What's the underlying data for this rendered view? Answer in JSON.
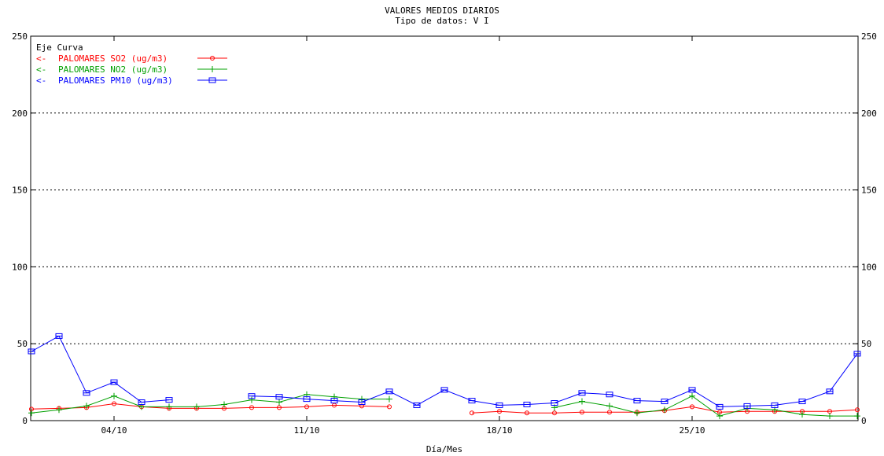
{
  "chart_data": {
    "type": "line",
    "title": "VALORES MEDIOS DIARIOS",
    "subtitle": "Tipo de datos:  V I",
    "xlabel": "Día/Mes",
    "x": [
      "01/10",
      "02/10",
      "03/10",
      "04/10",
      "05/10",
      "06/10",
      "07/10",
      "08/10",
      "09/10",
      "10/10",
      "11/10",
      "12/10",
      "13/10",
      "14/10",
      "15/10",
      "16/10",
      "17/10",
      "18/10",
      "19/10",
      "20/10",
      "21/10",
      "22/10",
      "23/10",
      "24/10",
      "25/10",
      "26/10",
      "27/10",
      "28/10",
      "29/10",
      "30/10",
      "31/10"
    ],
    "xticks": [
      "04/10",
      "11/10",
      "18/10",
      "25/10"
    ],
    "ylim": [
      0,
      250
    ],
    "yticks": [
      0,
      50,
      100,
      150,
      200,
      250
    ],
    "grid": true,
    "legend": {
      "header": "Eje Curva",
      "placement": "top-left"
    },
    "series": [
      {
        "name": "PALOMARES SO2  (ug/m3)",
        "axis_marker": "<-",
        "color": "#ff0000",
        "marker": "diamond",
        "values": [
          7.5,
          8,
          8.5,
          11,
          9,
          8,
          8,
          8,
          8.5,
          8.5,
          9,
          10,
          9.5,
          9,
          null,
          null,
          5,
          6,
          5,
          5,
          5.5,
          5.5,
          5.5,
          6.5,
          9,
          5.5,
          6,
          6,
          6,
          6,
          7
        ]
      },
      {
        "name": "PALOMARES NO2  (ug/m3)",
        "axis_marker": "<-",
        "color": "#00a000",
        "marker": "plus",
        "values": [
          5,
          7,
          9.5,
          16,
          9,
          9,
          9,
          10.5,
          13.5,
          12,
          17,
          15.5,
          14,
          14,
          null,
          null,
          null,
          null,
          null,
          8.5,
          12.5,
          9.5,
          5,
          7,
          16,
          3,
          8,
          7,
          4,
          3,
          3
        ]
      },
      {
        "name": "PALOMARES PM10  (ug/m3)",
        "axis_marker": "<-",
        "color": "#0000ff",
        "marker": "square",
        "values": [
          45,
          55,
          18,
          25,
          12,
          13.5,
          null,
          null,
          16,
          15.5,
          14,
          13,
          12,
          19,
          10,
          20,
          13,
          10,
          10.5,
          11.5,
          18,
          17,
          13,
          12.5,
          20,
          9,
          9.5,
          10,
          12.5,
          19,
          43.5
        ]
      }
    ]
  }
}
